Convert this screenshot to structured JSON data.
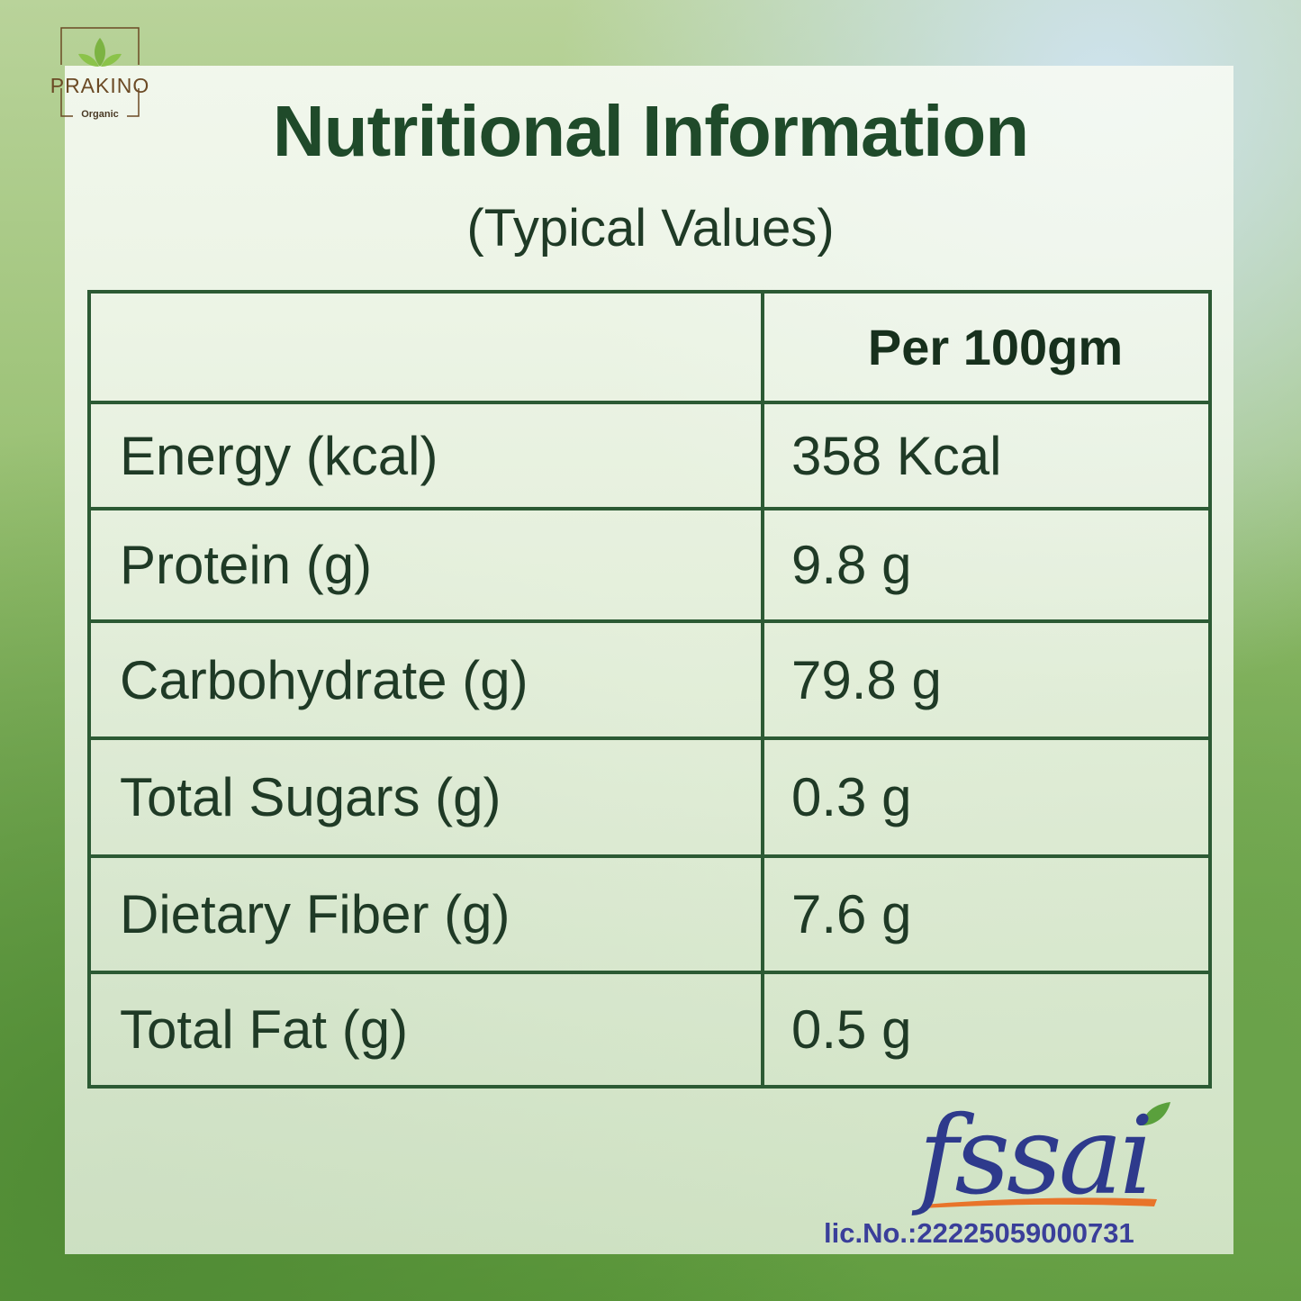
{
  "brand": {
    "name": "PRAKINO",
    "tagline": "Organic"
  },
  "header": {
    "title": "Nutritional Information",
    "subtitle": "(Typical Values)"
  },
  "table": {
    "column": "Per 100gm",
    "rows": [
      [
        "Energy (kcal)",
        "358 Kcal"
      ],
      [
        "Protein (g)",
        "9.8 g"
      ],
      [
        "Carbohydrate (g)",
        "79.8 g"
      ],
      [
        "Total Sugars (g)",
        "0.3 g"
      ],
      [
        "Dietary Fiber (g)",
        "7.6 g"
      ],
      [
        "Total Fat (g)",
        "0.5 g"
      ]
    ]
  },
  "certification": {
    "logo": "fssai",
    "license": "lic.No.:22225059000731"
  }
}
